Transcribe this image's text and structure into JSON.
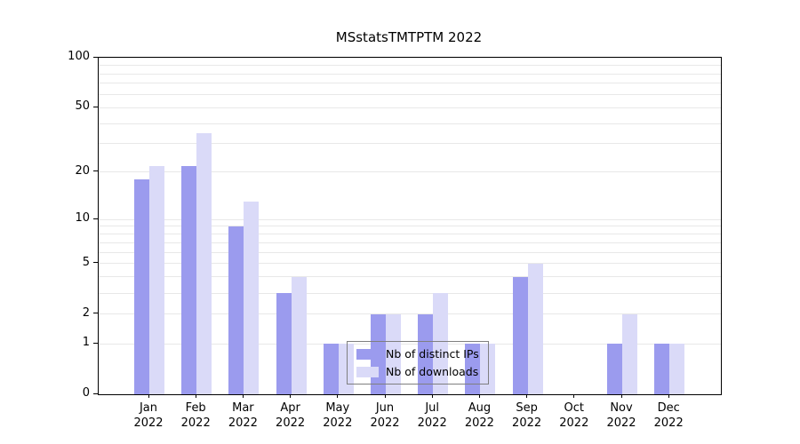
{
  "title": "MSstatsTMTPTM 2022",
  "chart_data": {
    "type": "bar",
    "title": "MSstatsTMTPTM 2022",
    "categories": [
      "Jan 2022",
      "Feb 2022",
      "Mar 2022",
      "Apr 2022",
      "May 2022",
      "Jun 2022",
      "Jul 2022",
      "Aug 2022",
      "Sep 2022",
      "Oct 2022",
      "Nov 2022",
      "Dec 2022"
    ],
    "series": [
      {
        "name": "Nb of distinct IPs",
        "color": "#9b9bee",
        "values": [
          18,
          22,
          9,
          3,
          1,
          2,
          2,
          1,
          4,
          0,
          1,
          1
        ]
      },
      {
        "name": "Nb of downloads",
        "color": "#dadaf8",
        "values": [
          22,
          35,
          13,
          4,
          1,
          2,
          3,
          1,
          5,
          0,
          2,
          1
        ]
      }
    ],
    "xlabel": "",
    "ylabel": "",
    "yscale": "log10(value+1)",
    "ylim": [
      0,
      100
    ],
    "ytick_labels": [
      "0",
      "1",
      "2",
      "5",
      "10",
      "20",
      "50",
      "100"
    ],
    "yticks": [
      0,
      1,
      2,
      5,
      10,
      20,
      50,
      100
    ],
    "gridlines": [
      1,
      2,
      3,
      4,
      5,
      6,
      7,
      8,
      9,
      10,
      20,
      30,
      40,
      50,
      60,
      70,
      80,
      90,
      100
    ],
    "grid": true,
    "legend_position": "inside-bottom-center"
  },
  "legend": {
    "items": [
      {
        "label": "Nb of distinct IPs"
      },
      {
        "label": "Nb of downloads"
      }
    ]
  },
  "colors": {
    "axis": "#000000",
    "gridline": "#e8e8e8",
    "background": "#ffffff"
  }
}
